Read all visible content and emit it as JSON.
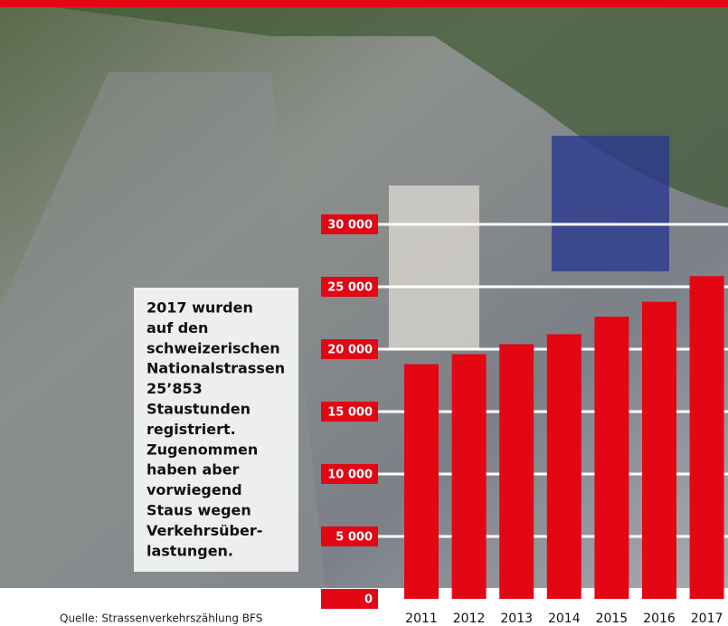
{
  "chart_data": {
    "type": "bar",
    "annotation": [
      "2017 wurden",
      "auf den",
      "schweizerischen",
      "Nationalstrassen",
      "25’853",
      "Staustunden",
      "registriert.",
      "Zugenommen",
      "haben aber",
      "vorwiegend",
      "Staus wegen",
      "Verkehrsüber-",
      "lastungen."
    ],
    "source": "Quelle: Strassenverkehrszählung BFS",
    "categories": [
      "2011",
      "2012",
      "2013",
      "2014",
      "2015",
      "2016",
      "2017"
    ],
    "values": [
      18800,
      19600,
      20400,
      21200,
      22600,
      23800,
      25853
    ],
    "color": "#e30613",
    "ylim": [
      0,
      30000
    ],
    "yticks": [
      0,
      {
        "value": 5000,
        "label": "5 000"
      },
      {
        "value": 10000,
        "label": "10 000"
      },
      {
        "value": 15000,
        "label": "15 000"
      },
      {
        "value": 20000,
        "label": "20 000"
      },
      {
        "value": 25000,
        "label": "25 000"
      },
      {
        "value": 30000,
        "label": "30 000"
      }
    ],
    "grid": true
  }
}
